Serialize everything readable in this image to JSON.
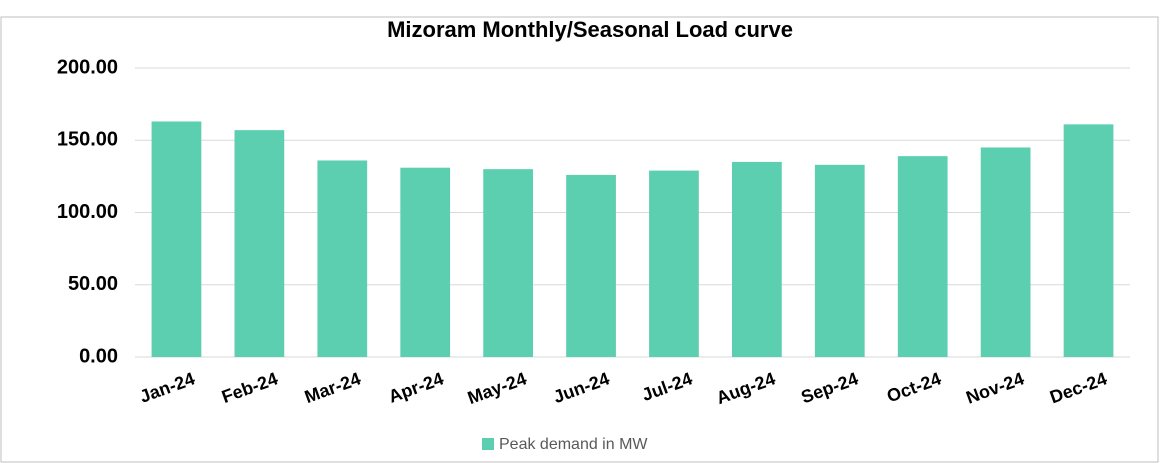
{
  "chart_data": {
    "type": "bar",
    "title": "Mizoram Monthly/Seasonal Load curve",
    "categories": [
      "Jan-24",
      "Feb-24",
      "Mar-24",
      "Apr-24",
      "May-24",
      "Jun-24",
      "Jul-24",
      "Aug-24",
      "Sep-24",
      "Oct-24",
      "Nov-24",
      "Dec-24"
    ],
    "series": [
      {
        "name": "Peak demand in MW",
        "color": "#5dcfb1",
        "values": [
          163,
          157,
          136,
          131,
          130,
          126,
          129,
          135,
          133,
          139,
          145,
          161
        ]
      }
    ],
    "ylim": [
      0,
      200
    ],
    "yticks": [
      {
        "value": 0,
        "label": "0.00"
      },
      {
        "value": 50,
        "label": "50.00"
      },
      {
        "value": 100,
        "label": "100.00"
      },
      {
        "value": 150,
        "label": "150.00"
      },
      {
        "value": 200,
        "label": "200.00"
      }
    ],
    "grid": true,
    "legend": "bottom"
  }
}
